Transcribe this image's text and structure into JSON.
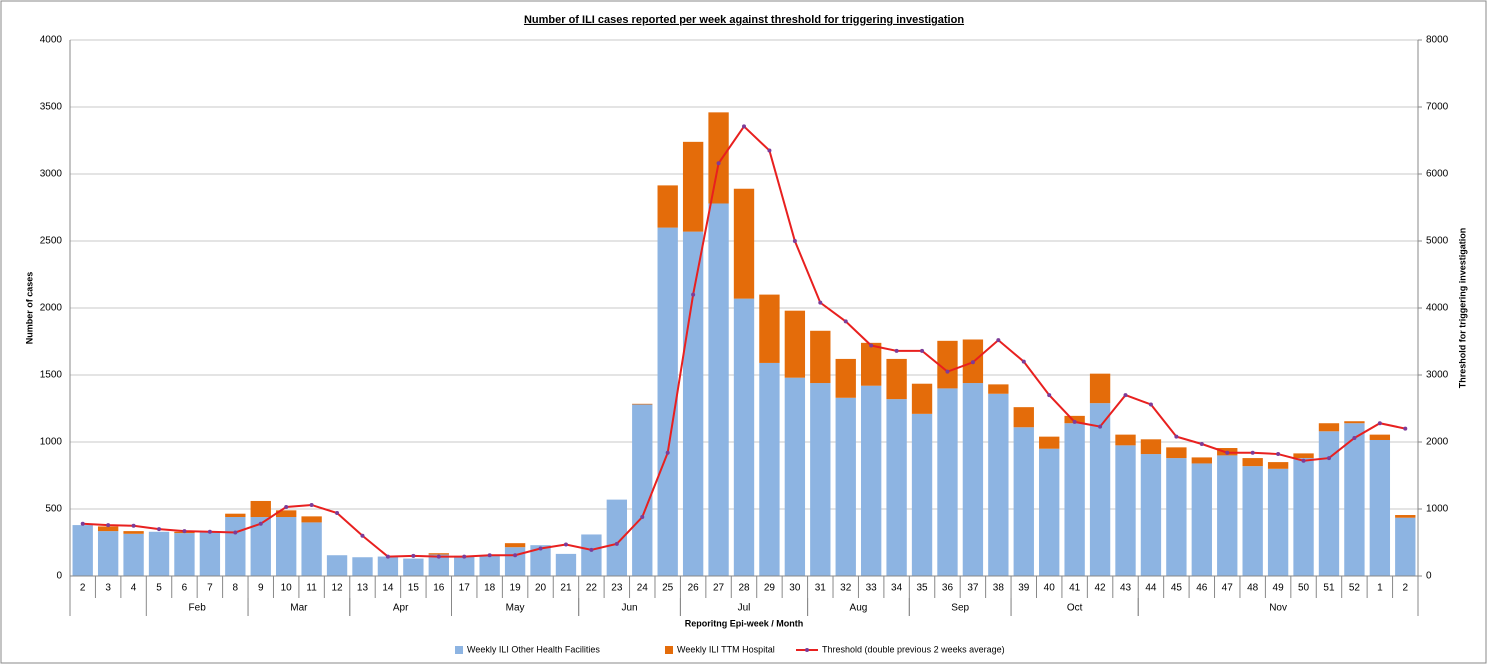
{
  "chart_data": {
    "type": "bar_line",
    "title": "Number of ILI cases  reported per week against threshold for triggering investigation",
    "x_label": "Reporitng Epi-week / Month",
    "y_label": "Number of cases",
    "y2_label": "Threshold for triggering investigation",
    "categories": [
      "2",
      "3",
      "4",
      "5",
      "6",
      "7",
      "8",
      "9",
      "10",
      "11",
      "12",
      "13",
      "14",
      "15",
      "16",
      "17",
      "18",
      "19",
      "20",
      "21",
      "22",
      "23",
      "24",
      "25",
      "26",
      "27",
      "28",
      "29",
      "30",
      "31",
      "32",
      "33",
      "34",
      "35",
      "36",
      "37",
      "38",
      "39",
      "40",
      "41",
      "42",
      "43",
      "44",
      "45",
      "46",
      "47",
      "48",
      "49",
      "50",
      "51",
      "52",
      "1",
      "2"
    ],
    "groups": [
      {
        "label": "Feb",
        "from": 3,
        "to": 6
      },
      {
        "label": "Mar",
        "from": 7,
        "to": 10
      },
      {
        "label": "Apr",
        "from": 11,
        "to": 14
      },
      {
        "label": "May",
        "from": 15,
        "to": 19
      },
      {
        "label": "Jun",
        "from": 20,
        "to": 23
      },
      {
        "label": "Jul",
        "from": 24,
        "to": 28
      },
      {
        "label": "Aug",
        "from": 29,
        "to": 32
      },
      {
        "label": "Sep",
        "from": 33,
        "to": 36
      },
      {
        "label": "Oct",
        "from": 37,
        "to": 41
      },
      {
        "label": "Nov",
        "from": 42,
        "to": 52
      }
    ],
    "series": [
      {
        "name": "Weekly ILI Other Health Facilities",
        "color": "#8db4e2",
        "kind": "bar",
        "values": [
          380,
          335,
          315,
          330,
          320,
          325,
          440,
          440,
          440,
          400,
          155,
          140,
          145,
          130,
          160,
          145,
          155,
          215,
          230,
          165,
          310,
          570,
          1280,
          2600,
          2570,
          2780,
          2070,
          1590,
          1480,
          1440,
          1330,
          1420,
          1320,
          1210,
          1400,
          1440,
          1360,
          1110,
          950,
          1140,
          1290,
          975,
          910,
          880,
          840,
          900,
          820,
          800,
          880,
          1080,
          1140,
          1015,
          435
        ]
      },
      {
        "name": "Weekly ILI TTM Hospital",
        "color": "#e46c0a",
        "kind": "bar",
        "values": [
          0,
          35,
          20,
          0,
          10,
          0,
          25,
          120,
          50,
          45,
          0,
          0,
          0,
          0,
          10,
          5,
          0,
          30,
          0,
          0,
          0,
          0,
          5,
          315,
          670,
          680,
          820,
          510,
          500,
          390,
          290,
          320,
          300,
          225,
          355,
          325,
          70,
          150,
          90,
          55,
          220,
          80,
          110,
          80,
          45,
          55,
          60,
          50,
          35,
          60,
          15,
          40,
          20
        ]
      },
      {
        "name": "Threshold (double previous 2 weeks average)",
        "color": "#e8201f",
        "marker_color": "#7d3c98",
        "kind": "line",
        "axis": "y2",
        "values": [
          780,
          760,
          750,
          700,
          670,
          660,
          650,
          780,
          1030,
          1060,
          940,
          600,
          290,
          300,
          290,
          290,
          310,
          310,
          410,
          470,
          390,
          480,
          880,
          1840,
          4200,
          6160,
          6710,
          6350,
          5000,
          4080,
          3800,
          3440,
          3360,
          3360,
          3050,
          3190,
          3520,
          3200,
          2700,
          2300,
          2230,
          2700,
          2560,
          2080,
          1970,
          1840,
          1840,
          1820,
          1720,
          1760,
          2060,
          2280,
          2200
        ]
      }
    ],
    "ylim": [
      0,
      4000
    ],
    "yticks": [
      0,
      500,
      1000,
      1500,
      2000,
      2500,
      3000,
      3500,
      4000
    ],
    "y2lim": [
      0,
      8000
    ],
    "y2ticks": [
      0,
      1000,
      2000,
      3000,
      4000,
      5000,
      6000,
      7000,
      8000
    ],
    "grid": true,
    "legend": "bottom"
  }
}
